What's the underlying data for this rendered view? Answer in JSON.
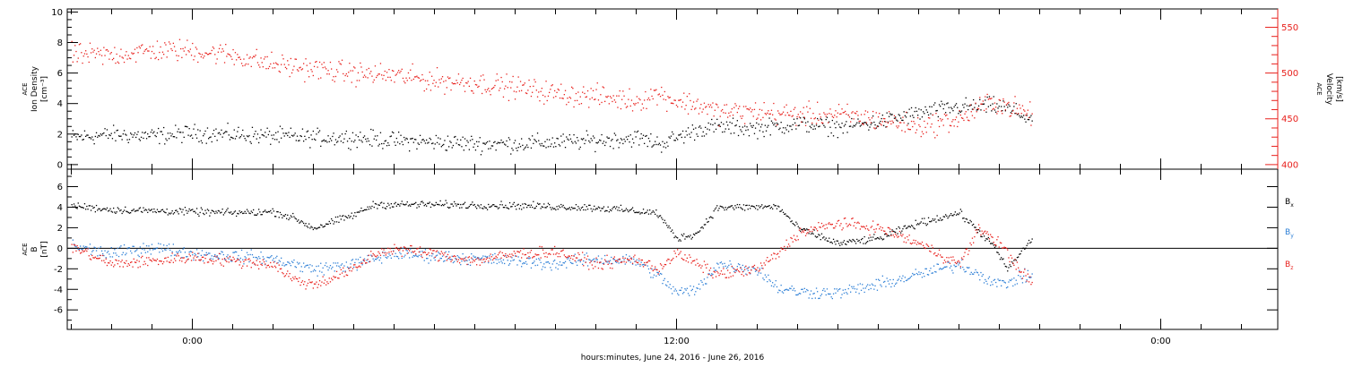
{
  "xlabel": "hours:minutes, June 24, 2016 - June 26, 2016",
  "x_ticks": [
    "0:00",
    "12:00",
    "0:00"
  ],
  "chart_data": [
    {
      "type": "scatter",
      "panel": "ace-plasma",
      "ylabel_left": [
        "ACE",
        "Ion Density",
        "[cm⁻³]"
      ],
      "ylabel_right": [
        "ACE",
        "Velocity",
        "[km/s]"
      ],
      "x_unit": "hours since 00:00 June 24, 2016",
      "xlim": [
        -3.1,
        26.9
      ],
      "left_axis": {
        "ylim": [
          -0.3,
          10.2
        ],
        "ticks": [
          0,
          2,
          4,
          6,
          8,
          10
        ],
        "color": "#000000"
      },
      "right_axis": {
        "ylim": [
          395,
          570
        ],
        "ticks": [
          400,
          450,
          500,
          550
        ],
        "color": "#e8201c"
      },
      "series": [
        {
          "key": "density",
          "axis": "left",
          "color": "#000000",
          "anchors": [
            [
              -3.0,
              1.8
            ],
            [
              -2.0,
              2.0
            ],
            [
              -1.0,
              1.9
            ],
            [
              0.0,
              2.1
            ],
            [
              1.0,
              2.0
            ],
            [
              2.0,
              1.9
            ],
            [
              3.0,
              1.8
            ],
            [
              4.0,
              1.8
            ],
            [
              5.0,
              1.6
            ],
            [
              6.0,
              1.5
            ],
            [
              7.0,
              1.4
            ],
            [
              8.0,
              1.4
            ],
            [
              9.0,
              1.5
            ],
            [
              10.0,
              1.6
            ],
            [
              11.0,
              1.8
            ],
            [
              11.6,
              1.4
            ],
            [
              12.0,
              1.8
            ],
            [
              12.6,
              2.4
            ],
            [
              13.0,
              2.5
            ],
            [
              14.0,
              2.4
            ],
            [
              15.0,
              2.7
            ],
            [
              16.0,
              2.5
            ],
            [
              17.0,
              2.8
            ],
            [
              18.0,
              3.4
            ],
            [
              19.0,
              3.8
            ],
            [
              20.0,
              3.9
            ],
            [
              20.8,
              3.0
            ]
          ],
          "noise": 0.55,
          "xmin": -3.0,
          "xmax": 20.8
        },
        {
          "key": "velocity",
          "axis": "right",
          "color": "#e8201c",
          "anchors": [
            [
              -3.0,
              520
            ],
            [
              -2.0,
              520
            ],
            [
              -1.0,
              525
            ],
            [
              0.0,
              525
            ],
            [
              1.0,
              520
            ],
            [
              2.0,
              510
            ],
            [
              3.0,
              505
            ],
            [
              4.0,
              500
            ],
            [
              5.0,
              498
            ],
            [
              6.0,
              492
            ],
            [
              7.0,
              490
            ],
            [
              8.0,
              485
            ],
            [
              9.0,
              478
            ],
            [
              10.0,
              475
            ],
            [
              11.0,
              470
            ],
            [
              11.5,
              478
            ],
            [
              12.0,
              470
            ],
            [
              12.6,
              465
            ],
            [
              13.0,
              458
            ],
            [
              14.0,
              458
            ],
            [
              15.0,
              455
            ],
            [
              16.0,
              455
            ],
            [
              17.0,
              450
            ],
            [
              18.0,
              442
            ],
            [
              19.0,
              450
            ],
            [
              19.8,
              470
            ],
            [
              20.8,
              455
            ]
          ],
          "noise": 12,
          "xmin": -3.0,
          "xmax": 20.8
        }
      ]
    },
    {
      "type": "scatter",
      "panel": "ace-magnetic-field",
      "ylabel_left": [
        "ACE",
        "B",
        "[nT]"
      ],
      "xlim": [
        -3.1,
        26.9
      ],
      "ylim": [
        -7.9,
        7.7
      ],
      "ticks": [
        -6,
        -4,
        -2,
        0,
        2,
        4,
        6
      ],
      "zero_line": true,
      "series": [
        {
          "key": "bx",
          "name": "Bx",
          "label_main": "B",
          "label_sub": "x",
          "color": "#000000",
          "anchors": [
            [
              -3.0,
              4.2
            ],
            [
              -2.0,
              3.8
            ],
            [
              -1.0,
              3.7
            ],
            [
              0.0,
              3.6
            ],
            [
              1.0,
              3.5
            ],
            [
              2.0,
              3.6
            ],
            [
              2.5,
              3.0
            ],
            [
              3.0,
              2.0
            ],
            [
              4.0,
              3.3
            ],
            [
              4.5,
              4.3
            ],
            [
              6.0,
              4.3
            ],
            [
              8.0,
              4.2
            ],
            [
              10.0,
              4.0
            ],
            [
              11.5,
              3.5
            ],
            [
              12.0,
              1.0
            ],
            [
              12.5,
              1.5
            ],
            [
              13.0,
              4.0
            ],
            [
              14.5,
              4.1
            ],
            [
              15.0,
              2.0
            ],
            [
              16.0,
              0.5
            ],
            [
              17.0,
              1.0
            ],
            [
              18.0,
              2.5
            ],
            [
              19.0,
              3.5
            ],
            [
              19.8,
              0.5
            ],
            [
              20.2,
              -2.0
            ],
            [
              20.8,
              1.0
            ]
          ],
          "noise": 0.35,
          "xmin": -3.0,
          "xmax": 20.8
        },
        {
          "key": "by",
          "name": "By",
          "label_main": "B",
          "label_sub": "y",
          "color": "#2d7fd6",
          "anchors": [
            [
              -3.0,
              0.3
            ],
            [
              -2.0,
              -0.5
            ],
            [
              -1.0,
              0.2
            ],
            [
              0.0,
              -0.5
            ],
            [
              1.0,
              -0.7
            ],
            [
              2.0,
              -1.0
            ],
            [
              3.0,
              -2.0
            ],
            [
              4.0,
              -1.5
            ],
            [
              5.0,
              -0.5
            ],
            [
              6.0,
              -0.7
            ],
            [
              7.0,
              -1.0
            ],
            [
              8.0,
              -1.2
            ],
            [
              9.0,
              -1.5
            ],
            [
              10.0,
              -1.0
            ],
            [
              11.0,
              -1.2
            ],
            [
              11.5,
              -2.5
            ],
            [
              12.0,
              -4.3
            ],
            [
              12.5,
              -4.0
            ],
            [
              13.0,
              -1.5
            ],
            [
              14.0,
              -2.0
            ],
            [
              14.5,
              -3.8
            ],
            [
              15.0,
              -4.2
            ],
            [
              16.0,
              -4.3
            ],
            [
              17.0,
              -3.5
            ],
            [
              18.0,
              -2.5
            ],
            [
              19.0,
              -1.5
            ],
            [
              20.0,
              -3.5
            ],
            [
              20.8,
              -2.5
            ]
          ],
          "noise": 0.6,
          "xmin": -3.0,
          "xmax": 20.8
        },
        {
          "key": "bz",
          "name": "Bz",
          "label_main": "B",
          "label_sub": "z",
          "color": "#e8201c",
          "anchors": [
            [
              -3.0,
              0.2
            ],
            [
              -2.0,
              -1.5
            ],
            [
              -1.0,
              -1.2
            ],
            [
              0.0,
              -0.8
            ],
            [
              1.0,
              -1.2
            ],
            [
              2.0,
              -1.5
            ],
            [
              2.5,
              -3.0
            ],
            [
              3.0,
              -3.5
            ],
            [
              4.0,
              -2.0
            ],
            [
              4.5,
              -0.5
            ],
            [
              5.0,
              0.0
            ],
            [
              6.0,
              -0.5
            ],
            [
              7.0,
              -1.2
            ],
            [
              8.0,
              -0.5
            ],
            [
              9.0,
              -0.3
            ],
            [
              10.0,
              -1.5
            ],
            [
              11.0,
              -1.0
            ],
            [
              11.5,
              -2.0
            ],
            [
              12.0,
              -0.5
            ],
            [
              13.0,
              -2.5
            ],
            [
              14.0,
              -2.0
            ],
            [
              14.5,
              -0.5
            ],
            [
              15.0,
              1.5
            ],
            [
              16.0,
              2.5
            ],
            [
              17.0,
              2.0
            ],
            [
              18.0,
              0.5
            ],
            [
              19.0,
              -1.5
            ],
            [
              19.5,
              2.0
            ],
            [
              20.0,
              0.5
            ],
            [
              20.8,
              -3.5
            ]
          ],
          "noise": 0.55,
          "xmin": -3.0,
          "xmax": 20.8
        }
      ]
    }
  ]
}
